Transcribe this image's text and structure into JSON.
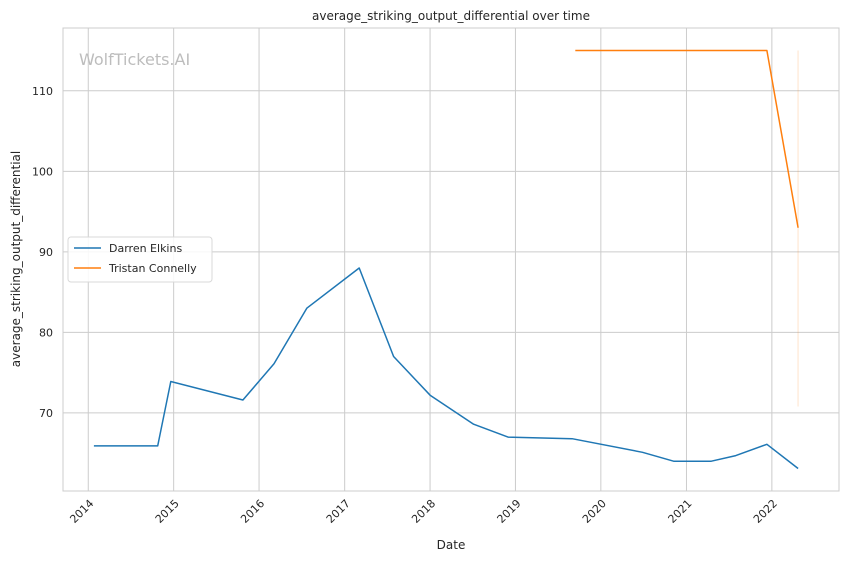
{
  "chart_data": {
    "type": "line",
    "title": "average_striking_output_differential over time",
    "xlabel": "Date",
    "ylabel": "average_striking_output_differential",
    "watermark": "WolfTickets.AI",
    "x_ticks": [
      "2014",
      "2015",
      "2016",
      "2017",
      "2018",
      "2019",
      "2020",
      "2021",
      "2022"
    ],
    "y_ticks": [
      70,
      80,
      90,
      100,
      110
    ],
    "xlim": [
      "2013-09-15",
      "2022-10-15"
    ],
    "ylim": [
      60.3,
      117.8
    ],
    "grid": true,
    "legend_position": "center-left",
    "series": [
      {
        "name": "Darren Elkins",
        "color": "#1f77b4",
        "points": [
          {
            "x": "2014-01-25",
            "y": 65.9
          },
          {
            "x": "2014-10-25",
            "y": 65.9
          },
          {
            "x": "2014-12-20",
            "y": 73.9
          },
          {
            "x": "2015-10-24",
            "y": 71.6
          },
          {
            "x": "2016-03-05",
            "y": 76.1
          },
          {
            "x": "2016-07-23",
            "y": 83.0
          },
          {
            "x": "2017-03-04",
            "y": 88.0
          },
          {
            "x": "2017-07-29",
            "y": 77.0
          },
          {
            "x": "2018-01-01",
            "y": 72.2
          },
          {
            "x": "2018-07-06",
            "y": 68.6
          },
          {
            "x": "2018-11-30",
            "y": 67.0
          },
          {
            "x": "2019-08-31",
            "y": 66.8
          },
          {
            "x": "2020-06-27",
            "y": 65.1
          },
          {
            "x": "2020-11-07",
            "y": 64.0
          },
          {
            "x": "2021-04-17",
            "y": 64.0
          },
          {
            "x": "2021-07-31",
            "y": 64.7
          },
          {
            "x": "2021-12-11",
            "y": 66.1
          },
          {
            "x": "2022-04-23",
            "y": 63.1
          }
        ]
      },
      {
        "name": "Tristan Connelly",
        "color": "#ff7f0e",
        "points": [
          {
            "x": "2019-09-14",
            "y": 115.0
          },
          {
            "x": "2021-12-11",
            "y": 115.0
          },
          {
            "x": "2022-04-23",
            "y": 93.0
          }
        ],
        "band": {
          "x": "2022-04-23",
          "y_low": 70.8,
          "y_high": 115.0
        }
      }
    ]
  }
}
